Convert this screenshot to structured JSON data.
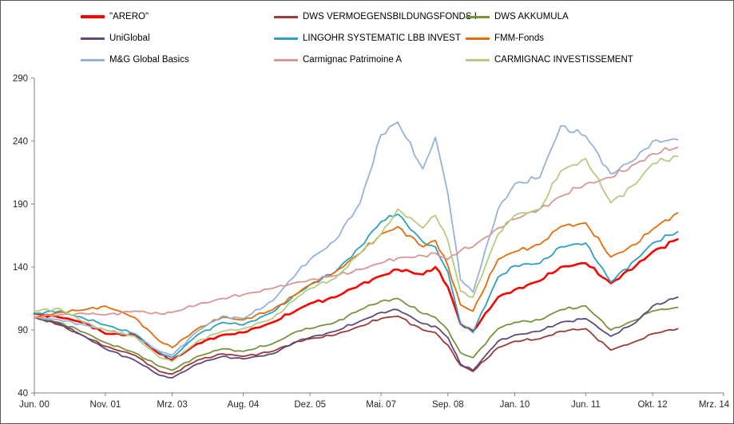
{
  "chart_data": {
    "type": "line",
    "title": "",
    "xlabel": "",
    "ylabel": "",
    "grid": false,
    "legend_position": "top",
    "xlim": [
      0,
      165
    ],
    "ylim": [
      40,
      290
    ],
    "y_ticks": [
      40,
      90,
      140,
      190,
      240,
      290
    ],
    "x_tick_positions": [
      0,
      17,
      33,
      50,
      66,
      83,
      99,
      115,
      132,
      148,
      165
    ],
    "x_tick_labels": [
      "Jun. 00",
      "Nov. 01",
      "Mrz. 03",
      "Aug. 04",
      "Dez. 05",
      "Mai. 07",
      "Sep. 08",
      "Jan. 10",
      "Jun. 11",
      "Okt. 12",
      "Mrz. 14"
    ],
    "x_unit": "months since Jun 2000",
    "x": [
      0,
      6,
      12,
      17,
      24,
      30,
      33,
      39,
      45,
      50,
      57,
      63,
      66,
      72,
      78,
      83,
      87,
      93,
      96,
      99,
      102,
      105,
      111,
      115,
      121,
      126,
      132,
      138,
      144,
      148,
      154
    ],
    "series": [
      {
        "name": "\"ARERO\"",
        "color": "#FF0000",
        "values": [
          103,
          100,
          96,
          87,
          86,
          71,
          66,
          79,
          86,
          88,
          96,
          106,
          111,
          116,
          126,
          133,
          138,
          134,
          140,
          124,
          95,
          89,
          116,
          122,
          129,
          140,
          143,
          127,
          141,
          152,
          162
        ]
      },
      {
        "name": "DWS VERMOEGENSBILDUNGSFONDS I",
        "color": "#9C3A36",
        "values": [
          100,
          94,
          85,
          77,
          70,
          57,
          55,
          66,
          71,
          69,
          73,
          81,
          83,
          86,
          93,
          99,
          101,
          90,
          88,
          78,
          62,
          57,
          76,
          81,
          83,
          89,
          91,
          74,
          81,
          87,
          91
        ]
      },
      {
        "name": "DWS AKKUMULA",
        "color": "#77933C",
        "values": [
          100,
          96,
          88,
          80,
          72,
          61,
          58,
          69,
          75,
          73,
          79,
          89,
          91,
          96,
          106,
          113,
          115,
          103,
          100,
          90,
          72,
          68,
          91,
          96,
          98,
          106,
          109,
          90,
          98,
          105,
          108
        ]
      },
      {
        "name": "UniGlobal",
        "color": "#5F497A",
        "values": [
          100,
          95,
          85,
          75,
          66,
          54,
          52,
          63,
          69,
          67,
          71,
          81,
          84,
          89,
          97,
          104,
          106,
          95,
          93,
          84,
          63,
          58,
          81,
          86,
          89,
          96,
          99,
          85,
          96,
          109,
          116
        ]
      },
      {
        "name": "LINGOHR SYSTEMATIC LBB INVEST",
        "color": "#2E9FC0",
        "values": [
          103,
          105,
          99,
          94,
          87,
          72,
          68,
          86,
          96,
          94,
          104,
          119,
          126,
          136,
          156,
          176,
          182,
          160,
          156,
          136,
          95,
          88,
          132,
          141,
          143,
          156,
          159,
          128,
          146,
          159,
          168
        ]
      },
      {
        "name": "FMM-Fonds",
        "color": "#E36C0A",
        "values": [
          100,
          104,
          106,
          109,
          100,
          81,
          76,
          91,
          100,
          98,
          106,
          119,
          126,
          136,
          151,
          166,
          172,
          156,
          161,
          141,
          110,
          105,
          146,
          152,
          158,
          172,
          175,
          148,
          158,
          170,
          183
        ]
      },
      {
        "name": "M&G Global Basics",
        "color": "#95B3D7",
        "values": [
          100,
          98,
          94,
          90,
          85,
          73,
          70,
          89,
          101,
          99,
          113,
          136,
          146,
          161,
          191,
          245,
          255,
          218,
          243,
          198,
          130,
          120,
          186,
          206,
          211,
          252,
          244,
          214,
          226,
          240,
          241
        ]
      },
      {
        "name": "Carmignac Patrimoine A",
        "color": "#D99694",
        "values": [
          100,
          102,
          103,
          102,
          105,
          103,
          104,
          110,
          115,
          118,
          123,
          128,
          130,
          133,
          138,
          143,
          147,
          149,
          151,
          146,
          153,
          156,
          171,
          178,
          186,
          196,
          206,
          211,
          222,
          230,
          235
        ]
      },
      {
        "name": "CARMIGNAC INVESTISSEMENT",
        "color": "#B3CC82",
        "values": [
          105,
          107,
          96,
          90,
          85,
          68,
          65,
          81,
          89,
          91,
          99,
          116,
          123,
          131,
          151,
          166,
          186,
          171,
          181,
          161,
          121,
          116,
          166,
          181,
          186,
          216,
          226,
          191,
          206,
          222,
          228
        ]
      }
    ]
  }
}
